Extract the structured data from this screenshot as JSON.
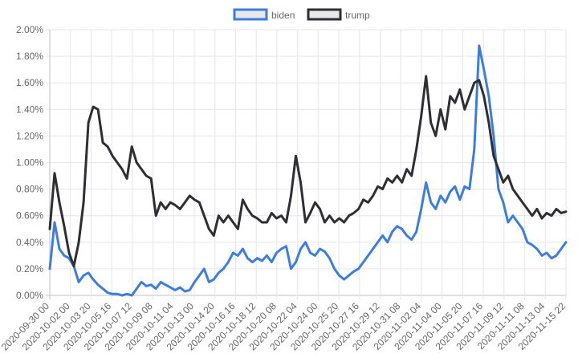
{
  "chart_data": {
    "type": "line",
    "title": "",
    "xlabel": "",
    "ylabel": "",
    "ylim": [
      0,
      2.0
    ],
    "y_unit": "%",
    "grid": true,
    "legend_position": "top",
    "x_tick_labels": [
      "2020-09-30 00",
      "2020-10-02 00",
      "2020-10-03 20",
      "2020-10-05 16",
      "2020-10-07 12",
      "2020-10-09 08",
      "2020-10-11 04",
      "2020-10-13 00",
      "2020-10-14 20",
      "2020-10-16 16",
      "2020-10-18 12",
      "2020-10-20 08",
      "2020-10-22 04",
      "2020-10-24 00",
      "2020-10-25 20",
      "2020-10-27 16",
      "2020-10-29 12",
      "2020-10-31 08",
      "2020-11-02 04",
      "2020-11-04 00",
      "2020-11-05 20",
      "2020-11-07 16",
      "2020-11-09 12",
      "2020-11-11 08",
      "2020-11-13 04",
      "2020-11-15 22"
    ],
    "y_tick_labels": [
      "0.00%",
      "0.20%",
      "0.40%",
      "0.60%",
      "0.80%",
      "1.00%",
      "1.20%",
      "1.40%",
      "1.60%",
      "1.80%",
      "2.00%"
    ],
    "series": [
      {
        "name": "biden",
        "color": "#3b7de0",
        "values": [
          0.2,
          0.55,
          0.35,
          0.3,
          0.28,
          0.22,
          0.1,
          0.15,
          0.17,
          0.12,
          0.08,
          0.05,
          0.02,
          0.01,
          0.01,
          0.0,
          0.01,
          0.0,
          0.05,
          0.1,
          0.07,
          0.08,
          0.05,
          0.1,
          0.08,
          0.06,
          0.04,
          0.06,
          0.03,
          0.04,
          0.1,
          0.15,
          0.2,
          0.1,
          0.12,
          0.17,
          0.2,
          0.25,
          0.32,
          0.3,
          0.35,
          0.28,
          0.25,
          0.28,
          0.26,
          0.3,
          0.25,
          0.32,
          0.35,
          0.37,
          0.2,
          0.25,
          0.35,
          0.4,
          0.32,
          0.3,
          0.35,
          0.33,
          0.28,
          0.2,
          0.15,
          0.12,
          0.15,
          0.18,
          0.2,
          0.25,
          0.3,
          0.35,
          0.4,
          0.45,
          0.4,
          0.48,
          0.52,
          0.5,
          0.45,
          0.42,
          0.48,
          0.65,
          0.85,
          0.7,
          0.65,
          0.75,
          0.7,
          0.78,
          0.82,
          0.72,
          0.82,
          0.8,
          1.1,
          1.88,
          1.7,
          1.5,
          1.2,
          0.8,
          0.7,
          0.55,
          0.6,
          0.55,
          0.5,
          0.4,
          0.38,
          0.35,
          0.3,
          0.32,
          0.28,
          0.3,
          0.35,
          0.4
        ]
      },
      {
        "name": "trump",
        "color": "#2e2e33",
        "values": [
          0.5,
          0.92,
          0.7,
          0.52,
          0.32,
          0.22,
          0.4,
          0.7,
          1.3,
          1.42,
          1.4,
          1.15,
          1.12,
          1.05,
          1.0,
          0.95,
          0.88,
          1.12,
          1.0,
          0.95,
          0.9,
          0.88,
          0.6,
          0.7,
          0.65,
          0.7,
          0.68,
          0.65,
          0.7,
          0.75,
          0.72,
          0.7,
          0.6,
          0.5,
          0.45,
          0.6,
          0.55,
          0.6,
          0.55,
          0.5,
          0.72,
          0.65,
          0.6,
          0.58,
          0.55,
          0.55,
          0.62,
          0.58,
          0.6,
          0.55,
          0.75,
          1.05,
          0.85,
          0.55,
          0.62,
          0.7,
          0.65,
          0.55,
          0.6,
          0.55,
          0.58,
          0.55,
          0.6,
          0.62,
          0.65,
          0.72,
          0.7,
          0.75,
          0.82,
          0.8,
          0.88,
          0.85,
          0.9,
          0.85,
          0.95,
          0.9,
          1.1,
          1.35,
          1.65,
          1.3,
          1.2,
          1.4,
          1.25,
          1.5,
          1.45,
          1.55,
          1.4,
          1.5,
          1.6,
          1.62,
          1.5,
          1.3,
          1.05,
          0.95,
          0.85,
          0.9,
          0.8,
          0.75,
          0.7,
          0.65,
          0.6,
          0.65,
          0.58,
          0.62,
          0.6,
          0.65,
          0.62,
          0.63
        ]
      }
    ]
  }
}
